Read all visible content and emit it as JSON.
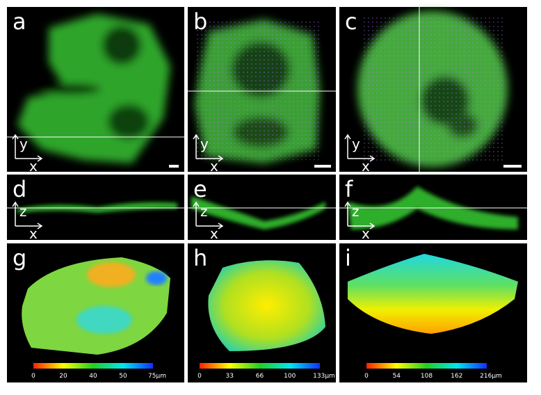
{
  "panels": [
    {
      "label": "a",
      "axes": [
        "y",
        "x"
      ]
    },
    {
      "label": "b",
      "axes": [
        "y",
        "x"
      ]
    },
    {
      "label": "c",
      "axes": [
        "y",
        "x"
      ]
    },
    {
      "label": "d",
      "axes": [
        "z",
        "x"
      ]
    },
    {
      "label": "e",
      "axes": [
        "z",
        "x"
      ]
    },
    {
      "label": "f",
      "axes": [
        "z",
        "x"
      ]
    },
    {
      "label": "g"
    },
    {
      "label": "h"
    },
    {
      "label": "i"
    }
  ],
  "colorbars": [
    {
      "ticks": [
        "0",
        "20",
        "40",
        "50",
        "75µm"
      ]
    },
    {
      "ticks": [
        "0",
        "33",
        "66",
        "100",
        "133µm"
      ]
    },
    {
      "ticks": [
        "0",
        "54",
        "108",
        "162",
        "216µm"
      ]
    }
  ]
}
